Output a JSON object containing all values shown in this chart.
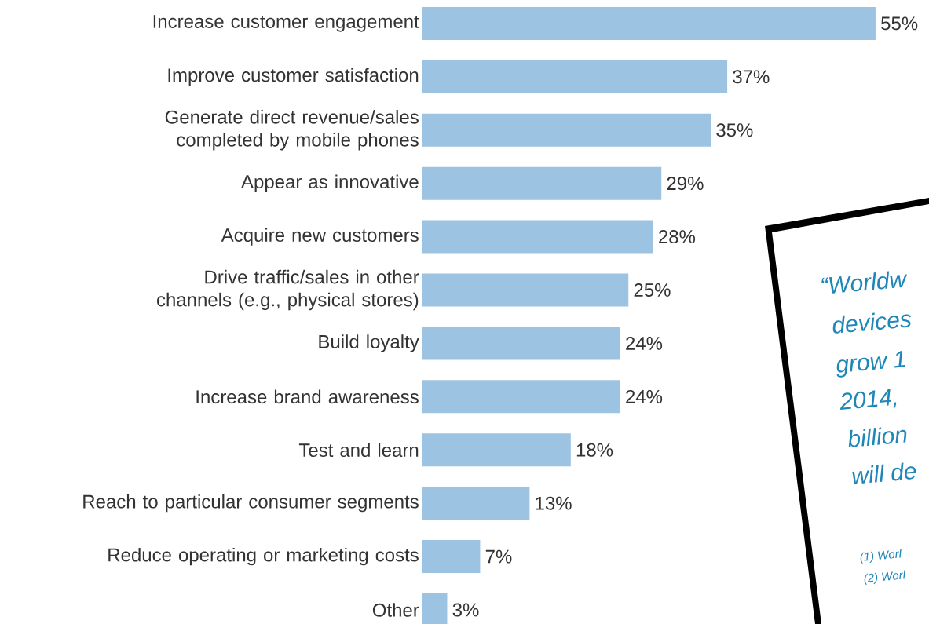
{
  "chart_data": {
    "type": "bar",
    "orientation": "horizontal",
    "categories": [
      "Increase customer engagement",
      "Improve customer satisfaction",
      "Generate direct revenue/sales completed by mobile phones",
      "Appear as innovative",
      "Acquire new customers",
      "Drive traffic/sales in other channels (e.g., physical stores)",
      "Build loyalty",
      "Increase brand awareness",
      "Test and learn",
      "Reach to particular consumer segments",
      "Reduce operating or marketing costs",
      "Other"
    ],
    "values": [
      55,
      37,
      35,
      29,
      28,
      25,
      24,
      24,
      18,
      13,
      7,
      3
    ],
    "value_labels": [
      "55%",
      "37%",
      "35%",
      "29%",
      "28%",
      "25%",
      "24%",
      "24%",
      "18%",
      "13%",
      "7%",
      "3%"
    ],
    "color": "#9dc3e2",
    "annotations": [
      "“Worldw",
      "devices",
      "grow 1",
      "2014,",
      "billion",
      "will de",
      "(1) Worl",
      "(2) Worl"
    ]
  }
}
